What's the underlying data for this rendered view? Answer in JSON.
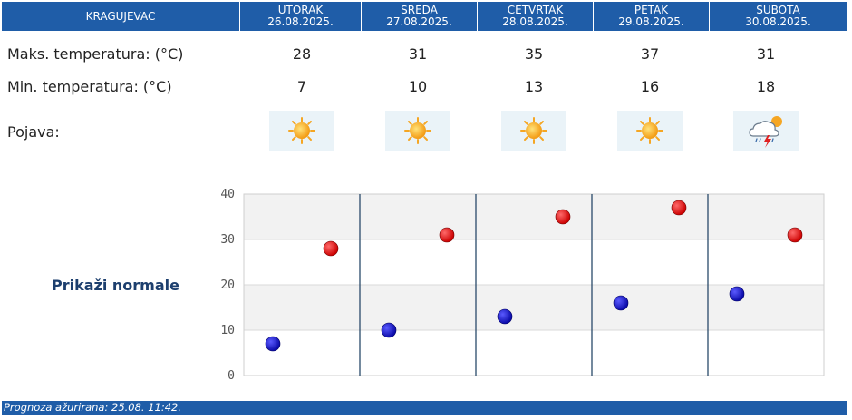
{
  "header": {
    "city": "KRAGUJEVAC",
    "days": [
      {
        "name": "UTORAK",
        "date": "26.08.2025."
      },
      {
        "name": "SREDA",
        "date": "27.08.2025."
      },
      {
        "name": "CETVRTAK",
        "date": "28.08.2025."
      },
      {
        "name": "PETAK",
        "date": "29.08.2025."
      },
      {
        "name": "SUBOTA",
        "date": "30.08.2025."
      }
    ]
  },
  "rows": {
    "max_label": "Maks. temperatura: (°C)",
    "min_label": "Min. temperatura: (°C)",
    "phenomena_label": "Pojava:",
    "max_values": [
      "28",
      "31",
      "35",
      "37",
      "31"
    ],
    "min_values": [
      "7",
      "10",
      "13",
      "16",
      "18"
    ],
    "icons": [
      "sun-icon",
      "sun-icon",
      "sun-icon",
      "sun-icon",
      "thunderstorm-icon"
    ]
  },
  "normals_link": "Prikaži normale",
  "footer": {
    "updated": "Prognoza ažurirana:  25.08. 11:42."
  },
  "colors": {
    "header_bg": "#1f5da8",
    "max_dot": "#cc0000",
    "min_dot": "#0a0aa8",
    "band": "#f2f2f2",
    "divider": "#2a4a6a"
  },
  "chart_data": {
    "type": "scatter",
    "categories": [
      "UTORAK",
      "SREDA",
      "CETVRTAK",
      "PETAK",
      "SUBOTA"
    ],
    "series": [
      {
        "values": [
          7,
          10,
          13,
          16,
          18
        ]
      },
      {
        "values": [
          28,
          31,
          35,
          37,
          31
        ]
      }
    ],
    "ylim": [
      0,
      40
    ],
    "yticks": [
      "0",
      "10",
      "20",
      "30",
      "40"
    ],
    "grid": true
  }
}
